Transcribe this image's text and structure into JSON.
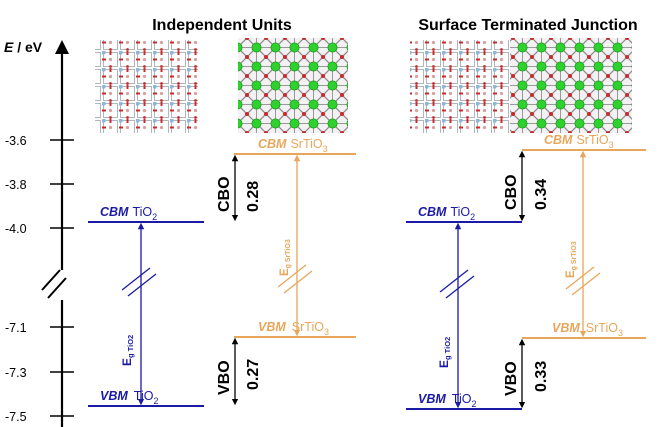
{
  "titles": {
    "left": "Independent Units",
    "right": "Surface Terminated Junction"
  },
  "axis": {
    "label_italic": "E",
    "label_unit": " / eV",
    "ticks": [
      "-3.6",
      "-3.8",
      "-4.0",
      "-7.1",
      "-7.3",
      "-7.5"
    ]
  },
  "panels": [
    {
      "id": "independent",
      "tio2_cbm": {
        "label": "CBM",
        "material": "TiO",
        "sub": "2"
      },
      "tio2_vbm": {
        "label": "VBM",
        "material": "TiO",
        "sub": "2"
      },
      "srtio3_cbm": {
        "label": "CBM",
        "material": "SrTiO",
        "sub": "3"
      },
      "srtio3_vbm": {
        "label": "VBM",
        "material": "SrTiO",
        "sub": "3"
      },
      "cbo": {
        "label": "CBO",
        "value": "0.28"
      },
      "vbo": {
        "label": "VBO",
        "value": "0.27"
      },
      "eg_tio2": {
        "base": "E",
        "sub": "g TiO2"
      },
      "eg_srtio3": {
        "base": "E",
        "sub": "g SrTiO3"
      }
    },
    {
      "id": "junction",
      "tio2_cbm": {
        "label": "CBM",
        "material": "TiO",
        "sub": "2"
      },
      "tio2_vbm": {
        "label": "VBM",
        "material": "TiO",
        "sub": "2"
      },
      "srtio3_cbm": {
        "label": "CBM",
        "material": "SrTiO",
        "sub": "3"
      },
      "srtio3_vbm": {
        "label": "VBM",
        "material": "SrTiO",
        "sub": "3"
      },
      "cbo": {
        "label": "CBO",
        "value": "0.34"
      },
      "vbo": {
        "label": "VBO",
        "value": "0.33"
      },
      "eg_tio2": {
        "base": "E",
        "sub": "g TiO2"
      },
      "eg_srtio3": {
        "base": "E",
        "sub": "g SrTiO3"
      }
    }
  ],
  "colors": {
    "tio2": "#1a1aa6",
    "srtio3": "#e8a65a",
    "axis": "#000000",
    "oxygen": "#cc2a2a",
    "titanium": "#8fb8d8",
    "strontium": "#2fd12f",
    "lattice": "#8a8a8a"
  }
}
